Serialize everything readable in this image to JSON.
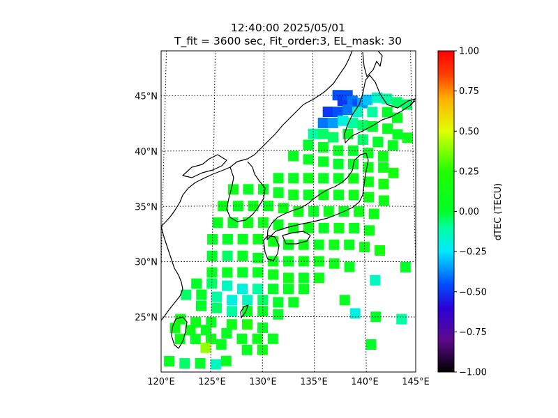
{
  "title": {
    "line1": "12:40:00 2025/05/01",
    "line2": "T_fit = 3600 sec, Fit_order:3, EL_mask: 30"
  },
  "map": {
    "lon_range": [
      120,
      145
    ],
    "lat_range": [
      20,
      49
    ],
    "lon_ticks": [
      {
        "value": 120,
        "label": "120°E"
      },
      {
        "value": 125,
        "label": "125°E"
      },
      {
        "value": 130,
        "label": "130°E"
      },
      {
        "value": 135,
        "label": "135°E"
      },
      {
        "value": 140,
        "label": "140°E"
      },
      {
        "value": 145,
        "label": "145°E"
      }
    ],
    "lat_ticks": [
      {
        "value": 25,
        "label": "25°N"
      },
      {
        "value": 30,
        "label": "30°N"
      },
      {
        "value": 35,
        "label": "35°N"
      },
      {
        "value": 40,
        "label": "40°N"
      },
      {
        "value": 45,
        "label": "45°N"
      }
    ],
    "grid": "dotted",
    "coastline_color": "#000000"
  },
  "colorbar": {
    "label": "dTEC (TECU)",
    "min": -1.0,
    "max": 1.0,
    "colormap": "nipy_spectral-like",
    "ticks": [
      {
        "value": 1.0,
        "label": "1.00"
      },
      {
        "value": 0.75,
        "label": "0.75"
      },
      {
        "value": 0.5,
        "label": "0.50"
      },
      {
        "value": 0.25,
        "label": "0.25"
      },
      {
        "value": 0.0,
        "label": "0.00"
      },
      {
        "value": -0.25,
        "label": "−0.25"
      },
      {
        "value": -0.5,
        "label": "−0.50"
      },
      {
        "value": -0.75,
        "label": "−0.75"
      },
      {
        "value": -1.0,
        "label": "−1.00"
      }
    ],
    "stops": [
      {
        "v": -1.0,
        "color": "#000000"
      },
      {
        "v": -0.8,
        "color": "#5e0a8c"
      },
      {
        "v": -0.6,
        "color": "#2a00d8"
      },
      {
        "v": -0.45,
        "color": "#0050ff"
      },
      {
        "v": -0.25,
        "color": "#00e8ff"
      },
      {
        "v": -0.1,
        "color": "#00ffa0"
      },
      {
        "v": 0.0,
        "color": "#00ff28"
      },
      {
        "v": 0.25,
        "color": "#20ff00"
      },
      {
        "v": 0.5,
        "color": "#e0ff00"
      },
      {
        "v": 0.7,
        "color": "#ffb000"
      },
      {
        "v": 0.85,
        "color": "#ff4000"
      },
      {
        "v": 1.0,
        "color": "#ff0000"
      }
    ]
  },
  "chart_data": {
    "type": "heatmap",
    "description_fields": [
      "lon",
      "lat",
      "dtec"
    ],
    "points": [
      [
        137.5,
        45.0,
        -0.45
      ],
      [
        138.0,
        44.5,
        -0.5
      ],
      [
        138.5,
        45.0,
        -0.45
      ],
      [
        139.0,
        44.5,
        -0.4
      ],
      [
        139.5,
        44.2,
        -0.45
      ],
      [
        140.0,
        44.3,
        -0.35
      ],
      [
        140.5,
        44.6,
        -0.3
      ],
      [
        141.5,
        44.8,
        -0.15
      ],
      [
        142.5,
        44.7,
        -0.1
      ],
      [
        143.5,
        44.4,
        -0.05
      ],
      [
        144.5,
        44.2,
        -0.05
      ],
      [
        136.5,
        43.5,
        -0.5
      ],
      [
        137.5,
        43.5,
        -0.45
      ],
      [
        138.5,
        43.7,
        -0.4
      ],
      [
        139.5,
        43.5,
        -0.15
      ],
      [
        141.0,
        43.5,
        -0.1
      ],
      [
        142.5,
        43.5,
        0.0
      ],
      [
        143.5,
        43.0,
        0.05
      ],
      [
        136.0,
        42.5,
        -0.4
      ],
      [
        137.0,
        42.5,
        -0.35
      ],
      [
        138.0,
        42.7,
        -0.2
      ],
      [
        139.0,
        42.5,
        -0.1
      ],
      [
        140.0,
        42.3,
        -0.05
      ],
      [
        141.0,
        42.2,
        0.0
      ],
      [
        142.5,
        42.0,
        0.05
      ],
      [
        143.5,
        41.5,
        0.05
      ],
      [
        144.5,
        41.2,
        0.1
      ],
      [
        135.0,
        41.5,
        -0.1
      ],
      [
        136.0,
        41.5,
        -0.05
      ],
      [
        137.0,
        41.2,
        -0.05
      ],
      [
        138.5,
        41.5,
        0.0
      ],
      [
        140.0,
        41.0,
        -0.05
      ],
      [
        141.5,
        40.8,
        0.0
      ],
      [
        143.0,
        40.5,
        0.05
      ],
      [
        134.5,
        40.5,
        0.0
      ],
      [
        136.0,
        40.3,
        0.05
      ],
      [
        137.5,
        40.0,
        0.05
      ],
      [
        139.0,
        40.0,
        0.0
      ],
      [
        140.5,
        39.8,
        0.05
      ],
      [
        142.0,
        39.5,
        0.1
      ],
      [
        133.0,
        39.5,
        0.05
      ],
      [
        134.5,
        39.2,
        0.05
      ],
      [
        136.0,
        39.0,
        0.05
      ],
      [
        137.5,
        38.8,
        0.0
      ],
      [
        139.0,
        38.8,
        0.05
      ],
      [
        140.5,
        38.5,
        0.1
      ],
      [
        142.0,
        38.5,
        0.1
      ],
      [
        143.0,
        38.0,
        0.15
      ],
      [
        131.5,
        37.5,
        0.05
      ],
      [
        133.0,
        37.5,
        0.05
      ],
      [
        134.5,
        37.5,
        0.1
      ],
      [
        136.0,
        37.5,
        0.05
      ],
      [
        137.5,
        37.5,
        0.05
      ],
      [
        139.0,
        37.5,
        0.1
      ],
      [
        140.5,
        37.2,
        0.1
      ],
      [
        142.0,
        37.0,
        0.15
      ],
      [
        127.0,
        36.5,
        0.1
      ],
      [
        128.5,
        36.5,
        0.05
      ],
      [
        130.0,
        36.5,
        0.05
      ],
      [
        131.5,
        36.2,
        0.05
      ],
      [
        133.0,
        36.0,
        0.1
      ],
      [
        134.5,
        36.0,
        0.05
      ],
      [
        136.0,
        36.0,
        0.1
      ],
      [
        137.5,
        36.0,
        0.05
      ],
      [
        139.0,
        36.0,
        0.1
      ],
      [
        140.5,
        35.8,
        0.1
      ],
      [
        142.0,
        35.5,
        0.1
      ],
      [
        126.0,
        35.0,
        0.1
      ],
      [
        127.5,
        35.0,
        0.05
      ],
      [
        129.0,
        35.0,
        0.1
      ],
      [
        130.5,
        35.0,
        0.05
      ],
      [
        132.0,
        34.8,
        0.1
      ],
      [
        133.5,
        34.5,
        0.1
      ],
      [
        135.0,
        34.5,
        0.05
      ],
      [
        136.5,
        34.5,
        0.1
      ],
      [
        138.0,
        34.5,
        0.05
      ],
      [
        139.5,
        34.5,
        0.1
      ],
      [
        141.0,
        34.3,
        0.1
      ],
      [
        125.5,
        33.5,
        0.05
      ],
      [
        127.0,
        33.5,
        0.05
      ],
      [
        128.5,
        33.5,
        0.1
      ],
      [
        130.0,
        33.5,
        0.1
      ],
      [
        131.5,
        33.3,
        0.05
      ],
      [
        133.0,
        33.0,
        0.1
      ],
      [
        134.5,
        33.0,
        0.1
      ],
      [
        136.0,
        33.0,
        0.05
      ],
      [
        137.5,
        33.0,
        0.1
      ],
      [
        139.0,
        33.0,
        0.05
      ],
      [
        140.5,
        32.8,
        0.1
      ],
      [
        125.0,
        32.0,
        0.05
      ],
      [
        126.5,
        32.0,
        0.0
      ],
      [
        128.0,
        32.0,
        0.05
      ],
      [
        129.5,
        32.0,
        0.1
      ],
      [
        131.0,
        31.8,
        0.1
      ],
      [
        132.5,
        31.5,
        0.05
      ],
      [
        134.0,
        31.5,
        0.1
      ],
      [
        135.5,
        31.5,
        0.05
      ],
      [
        137.0,
        31.5,
        0.1
      ],
      [
        138.5,
        31.5,
        0.05
      ],
      [
        140.0,
        31.3,
        0.1
      ],
      [
        141.5,
        31.0,
        0.15
      ],
      [
        125.0,
        30.5,
        0.0
      ],
      [
        126.5,
        30.5,
        -0.05
      ],
      [
        128.0,
        30.5,
        0.05
      ],
      [
        129.5,
        30.3,
        0.05
      ],
      [
        131.0,
        30.0,
        0.1
      ],
      [
        132.5,
        30.0,
        0.05
      ],
      [
        134.0,
        30.0,
        0.1
      ],
      [
        135.5,
        30.0,
        0.1
      ],
      [
        137.0,
        29.8,
        0.1
      ],
      [
        138.5,
        29.5,
        0.05
      ],
      [
        144.0,
        29.5,
        0.0
      ],
      [
        125.0,
        29.0,
        0.05
      ],
      [
        126.5,
        29.0,
        0.05
      ],
      [
        128.0,
        29.0,
        0.0
      ],
      [
        129.5,
        29.0,
        0.05
      ],
      [
        131.0,
        28.8,
        0.1
      ],
      [
        132.5,
        28.5,
        0.1
      ],
      [
        134.0,
        28.5,
        0.05
      ],
      [
        135.5,
        28.5,
        0.1
      ],
      [
        141.0,
        28.3,
        -0.15
      ],
      [
        123.5,
        28.0,
        0.0
      ],
      [
        125.0,
        28.0,
        -0.05
      ],
      [
        126.5,
        27.8,
        -0.15
      ],
      [
        128.0,
        27.5,
        -0.2
      ],
      [
        129.5,
        27.5,
        -0.1
      ],
      [
        131.0,
        27.5,
        0.0
      ],
      [
        132.5,
        27.5,
        0.05
      ],
      [
        134.0,
        27.5,
        0.05
      ],
      [
        122.5,
        27.0,
        -0.05
      ],
      [
        124.0,
        27.0,
        0.0
      ],
      [
        125.5,
        26.8,
        -0.1
      ],
      [
        127.0,
        26.5,
        -0.2
      ],
      [
        128.5,
        26.5,
        -0.15
      ],
      [
        130.0,
        26.5,
        -0.05
      ],
      [
        131.5,
        26.3,
        0.0
      ],
      [
        133.0,
        26.3,
        0.05
      ],
      [
        138.0,
        26.5,
        0.05
      ],
      [
        124.0,
        26.0,
        0.0
      ],
      [
        125.5,
        25.8,
        -0.05
      ],
      [
        127.0,
        25.5,
        -0.1
      ],
      [
        128.5,
        25.5,
        0.05
      ],
      [
        130.0,
        25.5,
        0.05
      ],
      [
        131.5,
        25.2,
        0.0
      ],
      [
        139.0,
        25.3,
        -0.2
      ],
      [
        141.0,
        25.0,
        0.0
      ],
      [
        143.5,
        24.8,
        -0.1
      ],
      [
        122.0,
        24.8,
        0.1
      ],
      [
        123.5,
        24.5,
        0.1
      ],
      [
        125.0,
        24.5,
        0.05
      ],
      [
        127.0,
        24.3,
        0.1
      ],
      [
        128.5,
        24.3,
        0.2
      ],
      [
        130.0,
        24.0,
        0.05
      ],
      [
        121.5,
        24.0,
        0.1
      ],
      [
        123.0,
        23.8,
        0.1
      ],
      [
        124.5,
        23.8,
        0.05
      ],
      [
        126.5,
        23.5,
        0.05
      ],
      [
        122.0,
        23.0,
        0.1
      ],
      [
        123.5,
        23.0,
        0.05
      ],
      [
        125.0,
        23.0,
        0.1
      ],
      [
        128.0,
        23.0,
        0.05
      ],
      [
        129.5,
        23.0,
        0.1
      ],
      [
        131.0,
        23.0,
        0.05
      ],
      [
        124.5,
        22.2,
        0.4
      ],
      [
        126.0,
        22.5,
        0.05
      ],
      [
        128.5,
        22.0,
        0.05
      ],
      [
        130.0,
        22.0,
        0.1
      ],
      [
        140.5,
        22.5,
        0.0
      ],
      [
        121.0,
        21.0,
        0.05
      ],
      [
        122.5,
        20.8,
        -0.05
      ],
      [
        124.0,
        20.8,
        0.0
      ],
      [
        125.5,
        20.7,
        -0.15
      ],
      [
        126.5,
        21.0,
        0.05
      ]
    ]
  }
}
